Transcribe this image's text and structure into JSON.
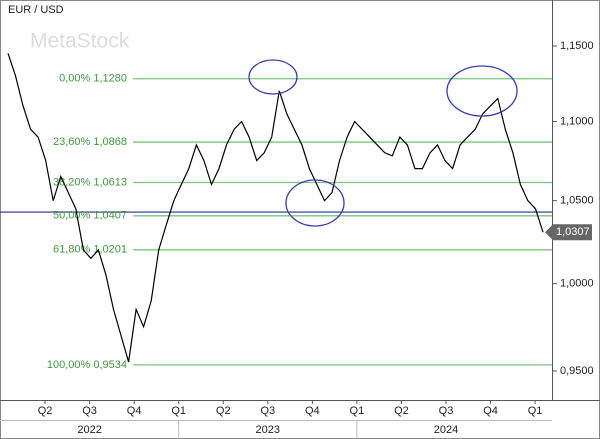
{
  "chart_data": {
    "type": "line",
    "title": "EUR / USD",
    "watermark": "MetaStock",
    "log_scale": true,
    "ylim": [
      0.935,
      1.178
    ],
    "yticks": [
      {
        "value": 1.15,
        "label": "1,1500"
      },
      {
        "value": 1.1,
        "label": "1,1000"
      },
      {
        "value": 1.05,
        "label": "1,0500"
      },
      {
        "value": 1.0,
        "label": "1,0000"
      },
      {
        "value": 0.95,
        "label": "0,9500"
      }
    ],
    "quarters": [
      "Q2",
      "Q3",
      "Q4",
      "Q1",
      "Q2",
      "Q3",
      "Q4",
      "Q1",
      "Q2",
      "Q3",
      "Q4",
      "Q1"
    ],
    "years": [
      "2022",
      "2023",
      "2024"
    ],
    "series": [
      {
        "color": "#000000",
        "values": [
          1.145,
          1.13,
          1.11,
          1.095,
          1.09,
          1.075,
          1.05,
          1.065,
          1.055,
          1.045,
          1.02,
          1.015,
          1.02,
          1.005,
          0.985,
          0.97,
          0.955,
          0.985,
          0.975,
          0.99,
          1.02,
          1.035,
          1.05,
          1.06,
          1.07,
          1.085,
          1.075,
          1.06,
          1.07,
          1.085,
          1.095,
          1.1,
          1.09,
          1.075,
          1.08,
          1.09,
          1.12,
          1.105,
          1.095,
          1.085,
          1.07,
          1.06,
          1.05,
          1.055,
          1.075,
          1.09,
          1.1,
          1.095,
          1.09,
          1.085,
          1.08,
          1.078,
          1.09,
          1.085,
          1.07,
          1.07,
          1.08,
          1.085,
          1.075,
          1.07,
          1.085,
          1.09,
          1.095,
          1.105,
          1.11,
          1.115,
          1.095,
          1.08,
          1.06,
          1.05,
          1.045,
          1.0307
        ]
      }
    ],
    "last_price": {
      "value": 1.0307,
      "label": "1,0307"
    },
    "hline": {
      "value": 1.043,
      "color": "#2b2b8f"
    },
    "fib_color": "#7cc47c",
    "fib_levels": [
      {
        "value": 1.128,
        "label": "0,00% 1,1280"
      },
      {
        "value": 1.0868,
        "label": "23,60% 1,0868"
      },
      {
        "value": 1.0613,
        "label": "38,20% 1,0613"
      },
      {
        "value": 1.0407,
        "label": "50,00% 1,0407"
      },
      {
        "value": 1.0201,
        "label": "61,80% 1,0201"
      },
      {
        "value": 0.9534,
        "label": "100,00% 0,9534"
      }
    ]
  }
}
